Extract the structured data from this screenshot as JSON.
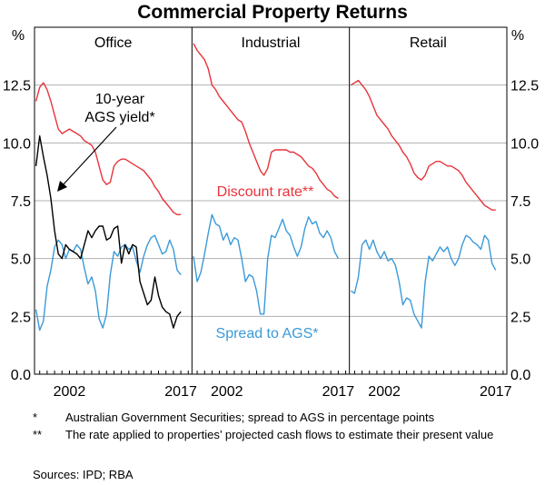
{
  "title": "Commercial Property Returns",
  "notes": [
    {
      "mark": "*",
      "text": "Australian Government Securities; spread to AGS in percentage points"
    },
    {
      "mark": "**",
      "text": "The rate applied to properties’ projected cash flows to estimate their present value"
    }
  ],
  "sources": "Sources: IPD; RBA",
  "colors": {
    "discount": "#e8333a",
    "spread": "#3a9ad9",
    "ags": "#000000",
    "grid": "#b0b0b0"
  },
  "chart_data": {
    "type": "line",
    "y_unit": "%",
    "ylim": [
      0,
      15
    ],
    "y_ticks": [
      "0.0",
      "2.5",
      "5.0",
      "7.5",
      "10.0",
      "12.5"
    ],
    "x_ticks": [
      "2002",
      "2017"
    ],
    "annotations": {
      "ags": "10-year AGS yield*",
      "discount": "Discount rate**",
      "spread": "Spread to AGS*"
    },
    "panels": [
      {
        "name": "Office",
        "xlim": [
          1997.3,
          2018.5
        ],
        "series": [
          {
            "key": "discount",
            "name": "Discount rate**",
            "x": [
              1997.5,
              1998,
              1998.5,
              1999,
              1999.5,
              2000,
              2000.5,
              2001,
              2001.5,
              2002,
              2002.5,
              2003,
              2003.5,
              2004,
              2004.5,
              2005,
              2005.5,
              2006,
              2006.5,
              2007,
              2007.5,
              2008,
              2008.5,
              2009,
              2009.5,
              2010,
              2010.5,
              2011,
              2011.5,
              2012,
              2012.5,
              2013,
              2013.5,
              2014,
              2014.5,
              2015,
              2015.5,
              2016,
              2016.5,
              2017
            ],
            "y": [
              11.8,
              12.4,
              12.6,
              12.3,
              11.8,
              11.2,
              10.6,
              10.4,
              10.5,
              10.6,
              10.5,
              10.4,
              10.3,
              10.1,
              10.0,
              9.9,
              9.6,
              9.0,
              8.4,
              8.2,
              8.3,
              9.0,
              9.2,
              9.3,
              9.3,
              9.2,
              9.1,
              9.0,
              8.9,
              8.8,
              8.6,
              8.4,
              8.1,
              7.9,
              7.6,
              7.4,
              7.2,
              7.0,
              6.9,
              6.9
            ]
          },
          {
            "key": "spread",
            "name": "Spread to AGS*",
            "x": [
              1997.5,
              1998,
              1998.5,
              1999,
              1999.5,
              2000,
              2000.5,
              2001,
              2001.5,
              2002,
              2002.5,
              2003,
              2003.5,
              2004,
              2004.5,
              2005,
              2005.5,
              2006,
              2006.5,
              2007,
              2007.5,
              2008,
              2008.5,
              2009,
              2009.5,
              2010,
              2010.5,
              2011,
              2011.5,
              2012,
              2012.5,
              2013,
              2013.5,
              2014,
              2014.5,
              2015,
              2015.5,
              2016,
              2016.5,
              2017
            ],
            "y": [
              2.8,
              1.9,
              2.3,
              3.8,
              4.5,
              5.5,
              5.8,
              5.6,
              5.0,
              5.4,
              5.3,
              5.6,
              5.4,
              4.6,
              3.9,
              4.2,
              3.6,
              2.4,
              2.0,
              2.6,
              4.3,
              5.3,
              5.1,
              5.5,
              5.6,
              5.4,
              5.5,
              4.9,
              4.4,
              5.1,
              5.6,
              5.9,
              6.0,
              5.6,
              5.2,
              5.3,
              5.8,
              5.4,
              4.5,
              4.3
            ]
          },
          {
            "key": "ags",
            "name": "10-year AGS yield*",
            "x": [
              1997.5,
              1998,
              1998.5,
              1999,
              1999.5,
              2000,
              2000.5,
              2001,
              2001.5,
              2002,
              2002.5,
              2003,
              2003.5,
              2004,
              2004.5,
              2005,
              2005.5,
              2006,
              2006.5,
              2007,
              2007.5,
              2008,
              2008.5,
              2009,
              2009.5,
              2010,
              2010.5,
              2011,
              2011.5,
              2012,
              2012.5,
              2013,
              2013.5,
              2014,
              2014.5,
              2015,
              2015.5,
              2016,
              2016.5,
              2017
            ],
            "y": [
              9.0,
              10.3,
              9.4,
              8.6,
              7.6,
              6.2,
              5.2,
              5.0,
              5.6,
              5.4,
              5.3,
              5.2,
              5.0,
              5.6,
              6.2,
              5.9,
              6.2,
              6.4,
              6.4,
              5.8,
              5.9,
              6.3,
              6.4,
              4.8,
              5.6,
              5.2,
              5.6,
              5.5,
              4.0,
              3.5,
              3.0,
              3.2,
              4.2,
              3.4,
              2.9,
              2.7,
              2.6,
              2.0,
              2.5,
              2.7
            ]
          }
        ]
      },
      {
        "name": "Industrial",
        "xlim": [
          1997.3,
          2018.5
        ],
        "series": [
          {
            "key": "discount",
            "name": "Discount rate**",
            "x": [
              1997.5,
              1998,
              1998.5,
              1999,
              1999.5,
              2000,
              2000.5,
              2001,
              2001.5,
              2002,
              2002.5,
              2003,
              2003.5,
              2004,
              2004.5,
              2005,
              2005.5,
              2006,
              2006.5,
              2007,
              2007.5,
              2008,
              2008.5,
              2009,
              2009.5,
              2010,
              2010.5,
              2011,
              2011.5,
              2012,
              2012.5,
              2013,
              2013.5,
              2014,
              2014.5,
              2015,
              2015.5,
              2016,
              2016.5,
              2017
            ],
            "y": [
              14.3,
              14.0,
              13.8,
              13.6,
              13.2,
              12.5,
              12.3,
              12.0,
              11.8,
              11.6,
              11.4,
              11.2,
              11.0,
              10.9,
              10.5,
              10.0,
              9.6,
              9.2,
              8.8,
              8.6,
              8.9,
              9.6,
              9.7,
              9.7,
              9.7,
              9.7,
              9.6,
              9.6,
              9.5,
              9.4,
              9.2,
              9.0,
              8.9,
              8.7,
              8.4,
              8.2,
              8.0,
              7.9,
              7.7,
              7.6
            ]
          },
          {
            "key": "spread",
            "name": "Spread to AGS*",
            "x": [
              1997.5,
              1998,
              1998.5,
              1999,
              1999.5,
              2000,
              2000.5,
              2001,
              2001.5,
              2002,
              2002.5,
              2003,
              2003.5,
              2004,
              2004.5,
              2005,
              2005.5,
              2006,
              2006.5,
              2007,
              2007.5,
              2008,
              2008.5,
              2009,
              2009.5,
              2010,
              2010.5,
              2011,
              2011.5,
              2012,
              2012.5,
              2013,
              2013.5,
              2014,
              2014.5,
              2015,
              2015.5,
              2016,
              2016.5,
              2017
            ],
            "y": [
              5.1,
              4.0,
              4.4,
              5.2,
              6.1,
              6.9,
              6.5,
              6.4,
              5.8,
              6.1,
              5.6,
              5.9,
              5.8,
              5.0,
              4.0,
              4.3,
              4.2,
              3.6,
              2.6,
              2.6,
              5.0,
              6.0,
              5.9,
              6.3,
              6.7,
              6.2,
              6.0,
              5.5,
              5.1,
              5.5,
              6.3,
              6.8,
              6.5,
              6.6,
              6.1,
              5.9,
              6.2,
              5.9,
              5.3,
              5.0
            ]
          }
        ]
      },
      {
        "name": "Retail",
        "xlim": [
          1997.3,
          2018.5
        ],
        "series": [
          {
            "key": "discount",
            "name": "Discount rate**",
            "x": [
              1997.5,
              1998,
              1998.5,
              1999,
              1999.5,
              2000,
              2000.5,
              2001,
              2001.5,
              2002,
              2002.5,
              2003,
              2003.5,
              2004,
              2004.5,
              2005,
              2005.5,
              2006,
              2006.5,
              2007,
              2007.5,
              2008,
              2008.5,
              2009,
              2009.5,
              2010,
              2010.5,
              2011,
              2011.5,
              2012,
              2012.5,
              2013,
              2013.5,
              2014,
              2014.5,
              2015,
              2015.5,
              2016,
              2016.5,
              2017
            ],
            "y": [
              12.5,
              12.6,
              12.7,
              12.5,
              12.3,
              12.0,
              11.6,
              11.2,
              11.0,
              10.8,
              10.6,
              10.3,
              10.1,
              9.9,
              9.6,
              9.4,
              9.1,
              8.7,
              8.5,
              8.4,
              8.6,
              9.0,
              9.1,
              9.2,
              9.2,
              9.1,
              9.0,
              9.0,
              8.9,
              8.8,
              8.6,
              8.3,
              8.1,
              7.9,
              7.7,
              7.5,
              7.3,
              7.2,
              7.1,
              7.1
            ]
          },
          {
            "key": "spread",
            "name": "Spread to AGS*",
            "x": [
              1997.5,
              1998,
              1998.5,
              1999,
              1999.5,
              2000,
              2000.5,
              2001,
              2001.5,
              2002,
              2002.5,
              2003,
              2003.5,
              2004,
              2004.5,
              2005,
              2005.5,
              2006,
              2006.5,
              2007,
              2007.5,
              2008,
              2008.5,
              2009,
              2009.5,
              2010,
              2010.5,
              2011,
              2011.5,
              2012,
              2012.5,
              2013,
              2013.5,
              2014,
              2014.5,
              2015,
              2015.5,
              2016,
              2016.5,
              2017
            ],
            "y": [
              3.6,
              3.5,
              4.2,
              5.6,
              5.8,
              5.4,
              5.8,
              5.3,
              5.0,
              5.3,
              4.9,
              5.0,
              4.7,
              4.0,
              3.0,
              3.3,
              3.2,
              2.6,
              2.3,
              2.0,
              4.0,
              5.1,
              4.9,
              5.2,
              5.5,
              5.3,
              5.5,
              5.0,
              4.7,
              5.0,
              5.6,
              6.0,
              5.9,
              5.7,
              5.6,
              5.4,
              6.0,
              5.8,
              4.8,
              4.5
            ]
          }
        ]
      }
    ]
  }
}
